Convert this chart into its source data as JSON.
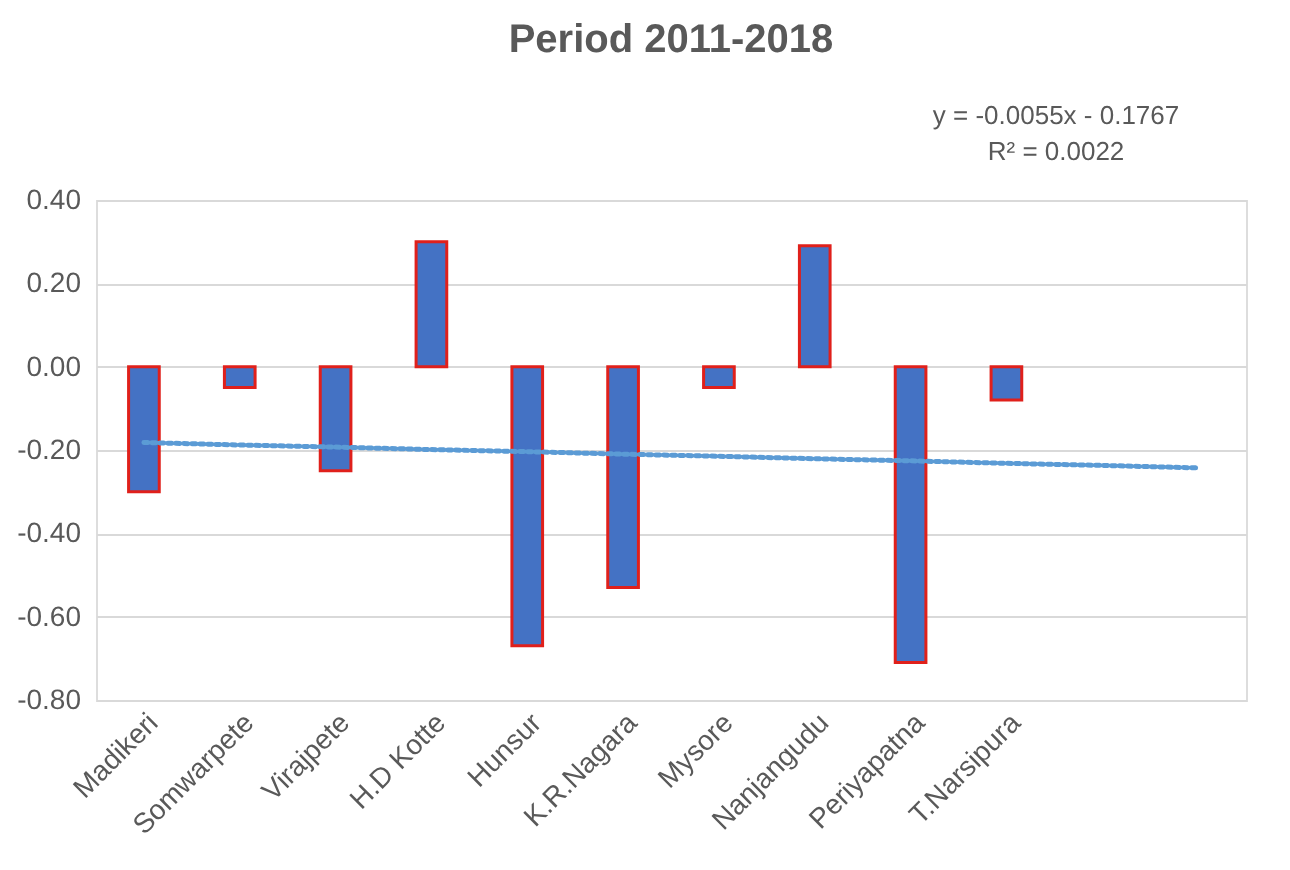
{
  "chart_data": {
    "type": "bar",
    "title": "Period 2011-2018",
    "categories": [
      "Madikeri",
      "Somwarpete",
      "Virajpete",
      "H.D Kotte",
      "Hunsur",
      "K.R.Nagara",
      "Mysore",
      "Nanjangudu",
      "Periyapatna",
      "T.Narsipura",
      null,
      null
    ],
    "series": [
      {
        "color": "#4472c4",
        "values": [
          -0.3,
          -0.05,
          -0.25,
          0.3,
          -0.67,
          -0.53,
          -0.05,
          0.29,
          -0.71,
          -0.08,
          null,
          null
        ]
      },
      {
        "type": "line",
        "color": "#5b9bd5",
        "line_style": "dotted",
        "values": [
          -0.182,
          -0.188,
          -0.193,
          -0.199,
          -0.204,
          -0.21,
          -0.215,
          -0.221,
          -0.226,
          -0.232,
          -0.237,
          -0.243
        ]
      }
    ],
    "annotations": [
      "y = -0.0055x - 0.1767",
      "R² = 0.0022"
    ],
    "ylim": [
      -0.8,
      0.4
    ],
    "yticks": [
      {
        "value": -0.8,
        "label": "-0.80"
      },
      {
        "value": -0.6,
        "label": "-0.60"
      },
      {
        "value": -0.4,
        "label": "-0.40"
      },
      {
        "value": -0.2,
        "label": "-0.20"
      },
      {
        "value": 0,
        "label": "0.00"
      },
      {
        "value": 0.2,
        "label": "0.20"
      },
      {
        "value": 0.4,
        "label": "0.40"
      }
    ],
    "grid": "y"
  }
}
